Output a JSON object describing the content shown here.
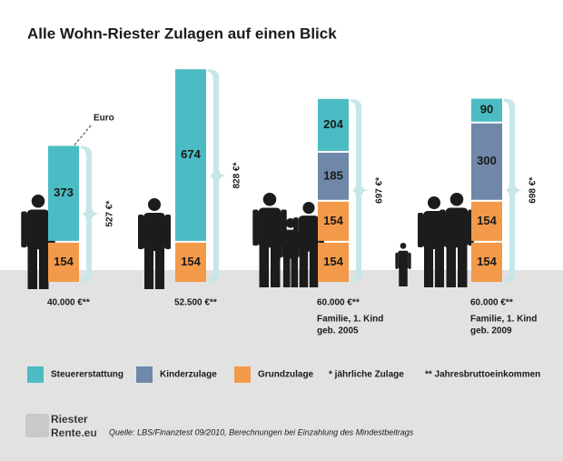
{
  "chart_data": {
    "type": "stacked-blocks",
    "title": "Alle Wohn-Riester Zulagen auf einen Blick",
    "categories": [
      "40.000 €**",
      "52.500 €**",
      "60.000 €**",
      "60.000 €**"
    ],
    "category_notes": [
      null,
      null,
      [
        "Familie, 1. Kind",
        "geb. 2005"
      ],
      [
        "Familie, 1. Kind",
        "geb. 2009"
      ]
    ],
    "series": [
      {
        "name": "Grundzulage",
        "color": "#f39a4a",
        "values": [
          154,
          154,
          154,
          154
        ]
      },
      {
        "color": "#f39a4a",
        "values": [
          null,
          null,
          154,
          154
        ]
      },
      {
        "name": "Kinderzulage",
        "color": "#6f87a8",
        "values": [
          null,
          null,
          185,
          300
        ]
      },
      {
        "name": "Steuererstattung",
        "color": "#4bbcc4",
        "values": [
          373,
          674,
          204,
          90
        ]
      }
    ],
    "totals": [
      527,
      828,
      697,
      698
    ],
    "total_labels": [
      "527 €*",
      "828 €*",
      "697 €*",
      "698 €*"
    ],
    "unit_annotation": "Euro",
    "notes": [
      "* jährliche Zulage",
      "** Jahresbruttoeinkommen"
    ],
    "source": "Quelle: LBS/Finanztest 09/2010, Berechnungen bei Einzahlung des Mindestbeitrags",
    "logo": [
      "Riester",
      "Rente.eu"
    ]
  }
}
